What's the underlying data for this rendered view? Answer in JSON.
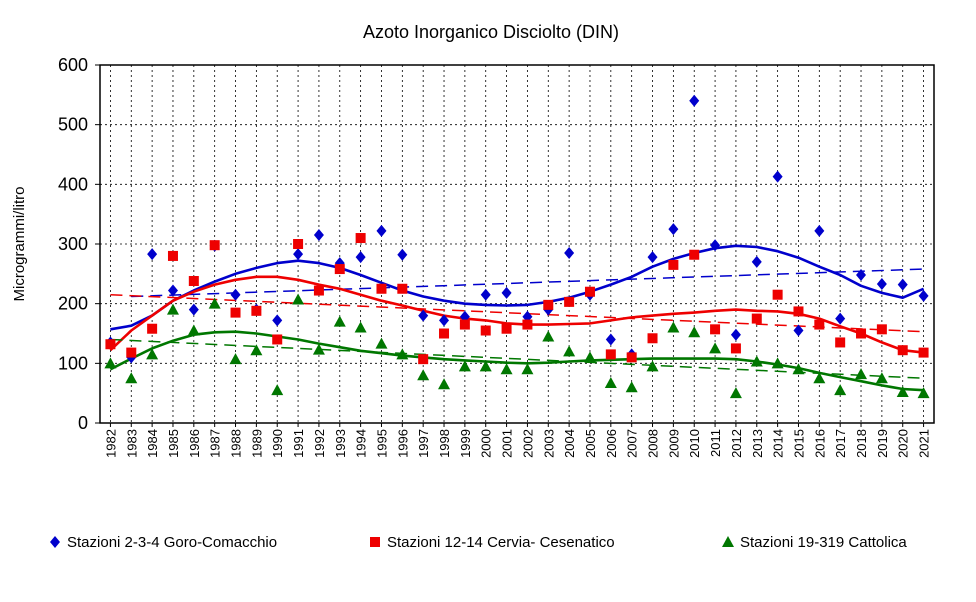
{
  "chart_data": {
    "type": "scatter",
    "title": "Azoto Inorganico Disciolto (DIN)",
    "xlabel": "",
    "ylabel": "Microgrammi/litro",
    "ylim": [
      0,
      600
    ],
    "xlim": [
      1981.5,
      2021.5
    ],
    "yticks": [
      "0",
      "100",
      "200",
      "300",
      "400",
      "500",
      "600"
    ],
    "x": [
      "1982",
      "1983",
      "1984",
      "1985",
      "1986",
      "1987",
      "1988",
      "1989",
      "1990",
      "1991",
      "1992",
      "1993",
      "1994",
      "1995",
      "1996",
      "1997",
      "1998",
      "1999",
      "2000",
      "2001",
      "2002",
      "2003",
      "2004",
      "2005",
      "2006",
      "2007",
      "2008",
      "2009",
      "2010",
      "2011",
      "2012",
      "2013",
      "2014",
      "2015",
      "2016",
      "2017",
      "2018",
      "2019",
      "2020",
      "2021"
    ],
    "grid": true,
    "legend_position": "bottom",
    "series": [
      {
        "name": "Stazioni 2-3-4 Goro-Comacchio",
        "marker": "diamond",
        "color": "#0000cc",
        "values": [
          135,
          110,
          283,
          222,
          190,
          297,
          215,
          190,
          172,
          283,
          315,
          268,
          278,
          322,
          282,
          180,
          172,
          178,
          215,
          218,
          178,
          190,
          285,
          215,
          140,
          115,
          278,
          325,
          540,
          298,
          148,
          270,
          413,
          155,
          322,
          175,
          248,
          233,
          232,
          213
        ],
        "smooth": [
          [
            1982,
            157
          ],
          [
            1983,
            163
          ],
          [
            1984,
            180
          ],
          [
            1985,
            205
          ],
          [
            1986,
            222
          ],
          [
            1987,
            237
          ],
          [
            1988,
            250
          ],
          [
            1989,
            260
          ],
          [
            1990,
            268
          ],
          [
            1991,
            272
          ],
          [
            1992,
            268
          ],
          [
            1993,
            260
          ],
          [
            1994,
            248
          ],
          [
            1995,
            235
          ],
          [
            1996,
            222
          ],
          [
            1997,
            212
          ],
          [
            1998,
            205
          ],
          [
            1999,
            200
          ],
          [
            2000,
            198
          ],
          [
            2001,
            197
          ],
          [
            2002,
            198
          ],
          [
            2003,
            203
          ],
          [
            2004,
            210
          ],
          [
            2005,
            220
          ],
          [
            2006,
            232
          ],
          [
            2007,
            245
          ],
          [
            2008,
            262
          ],
          [
            2009,
            275
          ],
          [
            2010,
            285
          ],
          [
            2011,
            293
          ],
          [
            2012,
            297
          ],
          [
            2013,
            295
          ],
          [
            2014,
            288
          ],
          [
            2015,
            277
          ],
          [
            2016,
            262
          ],
          [
            2017,
            248
          ],
          [
            2018,
            230
          ],
          [
            2019,
            218
          ],
          [
            2020,
            210
          ],
          [
            2021,
            225
          ]
        ],
        "trend": [
          [
            1983,
            212
          ],
          [
            2021,
            258
          ]
        ]
      },
      {
        "name": "Stazioni 12-14 Cervia- Cesenatico",
        "marker": "square",
        "color": "#ee0000",
        "values": [
          132,
          118,
          158,
          280,
          238,
          298,
          185,
          188,
          140,
          300,
          222,
          258,
          310,
          225,
          225,
          107,
          150,
          165,
          155,
          158,
          165,
          198,
          203,
          220,
          115,
          110,
          142,
          265,
          282,
          157,
          125,
          175,
          215,
          187,
          165,
          135,
          150,
          157,
          122,
          118
        ],
        "smooth": [
          [
            1982,
            122
          ],
          [
            1983,
            155
          ],
          [
            1984,
            180
          ],
          [
            1985,
            205
          ],
          [
            1986,
            220
          ],
          [
            1987,
            232
          ],
          [
            1988,
            240
          ],
          [
            1989,
            245
          ],
          [
            1990,
            245
          ],
          [
            1991,
            240
          ],
          [
            1992,
            232
          ],
          [
            1993,
            225
          ],
          [
            1994,
            215
          ],
          [
            1995,
            205
          ],
          [
            1996,
            197
          ],
          [
            1997,
            188
          ],
          [
            1998,
            180
          ],
          [
            1999,
            175
          ],
          [
            2000,
            172
          ],
          [
            2001,
            167
          ],
          [
            2002,
            165
          ],
          [
            2003,
            165
          ],
          [
            2004,
            166
          ],
          [
            2005,
            167
          ],
          [
            2006,
            172
          ],
          [
            2007,
            177
          ],
          [
            2008,
            180
          ],
          [
            2009,
            183
          ],
          [
            2010,
            185
          ],
          [
            2011,
            188
          ],
          [
            2012,
            190
          ],
          [
            2013,
            188
          ],
          [
            2014,
            187
          ],
          [
            2015,
            183
          ],
          [
            2016,
            175
          ],
          [
            2017,
            162
          ],
          [
            2018,
            150
          ],
          [
            2019,
            135
          ],
          [
            2020,
            122
          ],
          [
            2021,
            118
          ]
        ],
        "trend": [
          [
            1982,
            215
          ],
          [
            2021,
            153
          ]
        ]
      },
      {
        "name": "Stazioni 19-319 Cattolica",
        "marker": "triangle",
        "color": "#007700",
        "values": [
          100,
          75,
          115,
          190,
          155,
          200,
          107,
          122,
          55,
          207,
          123,
          170,
          160,
          133,
          115,
          80,
          65,
          95,
          95,
          90,
          90,
          145,
          120,
          110,
          67,
          60,
          95,
          160,
          152,
          125,
          50,
          103,
          100,
          90,
          75,
          55,
          82,
          75,
          52,
          50
        ],
        "smooth": [
          [
            1982,
            90
          ],
          [
            1983,
            108
          ],
          [
            1984,
            125
          ],
          [
            1985,
            138
          ],
          [
            1986,
            148
          ],
          [
            1987,
            152
          ],
          [
            1988,
            153
          ],
          [
            1989,
            150
          ],
          [
            1990,
            145
          ],
          [
            1991,
            140
          ],
          [
            1992,
            133
          ],
          [
            1993,
            127
          ],
          [
            1994,
            121
          ],
          [
            1995,
            117
          ],
          [
            1996,
            113
          ],
          [
            1997,
            110
          ],
          [
            1998,
            107
          ],
          [
            1999,
            105
          ],
          [
            2000,
            103
          ],
          [
            2001,
            101
          ],
          [
            2002,
            100
          ],
          [
            2003,
            101
          ],
          [
            2004,
            103
          ],
          [
            2005,
            105
          ],
          [
            2006,
            106
          ],
          [
            2007,
            107
          ],
          [
            2008,
            108
          ],
          [
            2009,
            108
          ],
          [
            2010,
            108
          ],
          [
            2011,
            108
          ],
          [
            2012,
            107
          ],
          [
            2013,
            103
          ],
          [
            2014,
            98
          ],
          [
            2015,
            92
          ],
          [
            2016,
            84
          ],
          [
            2017,
            77
          ],
          [
            2018,
            70
          ],
          [
            2019,
            63
          ],
          [
            2020,
            57
          ],
          [
            2021,
            55
          ]
        ],
        "trend": [
          [
            1982,
            140
          ],
          [
            2021,
            75
          ]
        ]
      }
    ]
  }
}
